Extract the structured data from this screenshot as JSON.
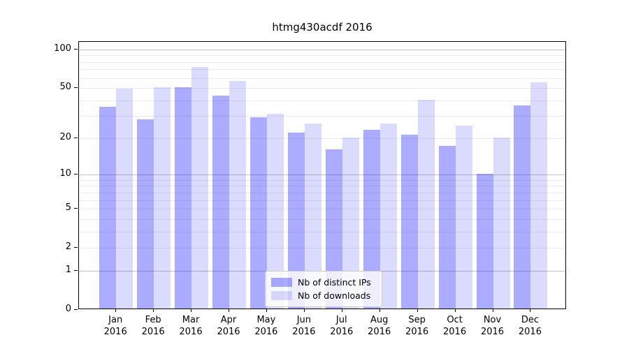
{
  "chart_data": {
    "type": "bar",
    "title": "htmg430acdf 2016",
    "categories": [
      "Jan",
      "Feb",
      "Mar",
      "Apr",
      "May",
      "Jun",
      "Jul",
      "Aug",
      "Sep",
      "Oct",
      "Nov",
      "Dec"
    ],
    "x_year_label": "2016",
    "series": [
      {
        "name": "Nb of distinct IPs",
        "color": "rgba(0,0,255,0.33)",
        "values": [
          35,
          28,
          50,
          43,
          29,
          22,
          16,
          23,
          21,
          17,
          10,
          36
        ]
      },
      {
        "name": "Nb of downloads",
        "color": "rgba(0,0,255,0.14)",
        "values": [
          49,
          50,
          72,
          56,
          31,
          26,
          20,
          26,
          40,
          25,
          20,
          55
        ]
      }
    ],
    "yscale": "log1p",
    "ylim": [
      0,
      110
    ],
    "y_tick_labels": [
      "100",
      "50",
      "20",
      "10",
      "5",
      "2",
      "1",
      "0"
    ],
    "y_tick_values": [
      100,
      50,
      20,
      10,
      5,
      2,
      1,
      0
    ],
    "grid_major_values": [
      1,
      10,
      100
    ],
    "grid_minor_values": [
      2,
      3,
      4,
      5,
      6,
      7,
      8,
      9,
      20,
      30,
      40,
      50,
      60,
      70,
      80,
      90
    ],
    "grid": "on",
    "legend_position": "lower center",
    "xlabel": "",
    "ylabel": ""
  },
  "colors": {
    "bar_dark": "rgba(0,0,255,0.33)",
    "bar_light": "rgba(0,0,255,0.14)",
    "grid_major": "#c3c3c3",
    "grid_minor": "#ececec",
    "spine": "#000000",
    "legend_border": "#cccccc"
  }
}
